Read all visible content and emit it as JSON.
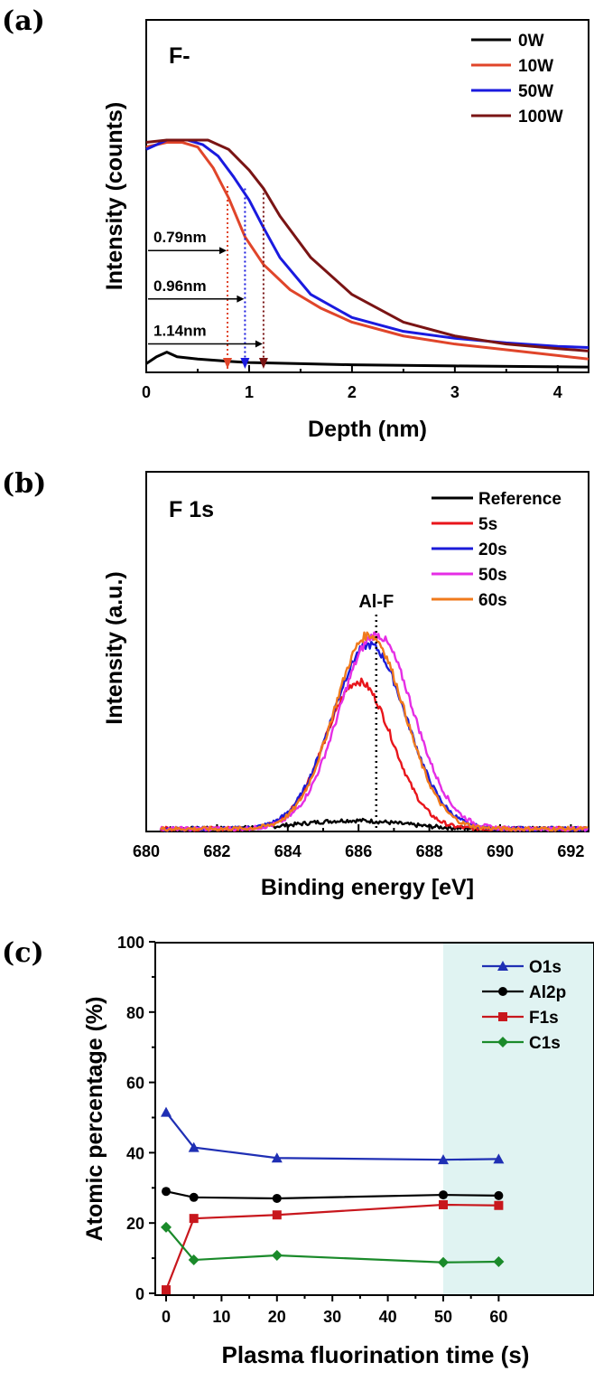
{
  "chart_data": [
    {
      "panel": "(a)",
      "type": "line",
      "title": "F-",
      "xlabel": "Depth (nm)",
      "ylabel": "Intensity (counts)",
      "xlim": [
        0,
        4.3
      ],
      "ylim": [
        0,
        1
      ],
      "x_ticks": [
        "0",
        "1",
        "2",
        "3",
        "4"
      ],
      "legend_position": "top-right",
      "series": [
        {
          "name": "0W",
          "color": "#000000",
          "x": [
            0,
            0.1,
            0.2,
            0.3,
            0.5,
            0.8,
            1.0,
            1.5,
            2.0,
            3.0,
            4.3
          ],
          "y": [
            0.03,
            0.06,
            0.08,
            0.06,
            0.05,
            0.04,
            0.035,
            0.03,
            0.025,
            0.02,
            0.015
          ]
        },
        {
          "name": "10W",
          "color": "#e0452a",
          "x": [
            0,
            0.2,
            0.35,
            0.5,
            0.65,
            0.8,
            0.96,
            1.14,
            1.4,
            1.7,
            2.0,
            2.5,
            3.0,
            3.5,
            4.0,
            4.3
          ],
          "y": [
            0.97,
            0.99,
            0.99,
            0.97,
            0.88,
            0.75,
            0.58,
            0.46,
            0.35,
            0.27,
            0.21,
            0.15,
            0.115,
            0.09,
            0.065,
            0.05
          ]
        },
        {
          "name": "50W",
          "color": "#1a1adf",
          "x": [
            0,
            0.2,
            0.4,
            0.55,
            0.7,
            0.85,
            1.0,
            1.14,
            1.3,
            1.6,
            2.0,
            2.5,
            3.0,
            3.5,
            4.0,
            4.3
          ],
          "y": [
            0.96,
            1.0,
            1.0,
            0.98,
            0.93,
            0.84,
            0.74,
            0.62,
            0.49,
            0.33,
            0.23,
            0.17,
            0.14,
            0.12,
            0.105,
            0.1
          ]
        },
        {
          "name": "100W",
          "color": "#7a1414",
          "x": [
            0,
            0.2,
            0.4,
            0.6,
            0.8,
            1.0,
            1.14,
            1.3,
            1.6,
            2.0,
            2.5,
            3.0,
            3.5,
            4.0,
            4.3
          ],
          "y": [
            0.99,
            1.0,
            1.0,
            1.0,
            0.96,
            0.87,
            0.79,
            0.67,
            0.49,
            0.33,
            0.21,
            0.15,
            0.115,
            0.095,
            0.085
          ]
        }
      ],
      "annotations": [
        {
          "text": "0.79nm",
          "x": 0.79,
          "y_top": 0.8,
          "y_arrow": 0.575,
          "color": "#e0452a"
        },
        {
          "text": "0.96nm",
          "x": 0.96,
          "y_top": 0.79,
          "y_arrow": 0.36,
          "color": "#1a1adf"
        },
        {
          "text": "1.14nm",
          "x": 1.14,
          "y_top": 0.79,
          "y_arrow": 0.165,
          "color": "#7a1414"
        }
      ]
    },
    {
      "panel": "(b)",
      "type": "line",
      "title": "F 1s",
      "xlabel": "Binding energy [eV]",
      "ylabel": "Intensity (a.u.)",
      "xlim": [
        680,
        692.5
      ],
      "ylim": [
        0,
        1
      ],
      "x_ticks": [
        "680",
        "682",
        "684",
        "686",
        "688",
        "690",
        "692"
      ],
      "legend_position": "top-right",
      "annotation": {
        "text": "Al-F",
        "x": 686.5
      },
      "series": [
        {
          "name": "Reference",
          "color": "#000000",
          "center": 685.8,
          "sigma": 1.4,
          "amplitude": 0.025
        },
        {
          "name": "5s",
          "color": "#e8151b",
          "center": 686.0,
          "sigma": 0.95,
          "amplitude": 0.44
        },
        {
          "name": "20s",
          "color": "#1b1bd8",
          "center": 686.3,
          "sigma": 1.05,
          "amplitude": 0.55
        },
        {
          "name": "50s",
          "color": "#e52ee5",
          "center": 686.5,
          "sigma": 1.05,
          "amplitude": 0.58
        },
        {
          "name": "60s",
          "color": "#f07a1c",
          "center": 686.3,
          "sigma": 1.0,
          "amplitude": 0.58
        }
      ]
    },
    {
      "panel": "(c)",
      "type": "line",
      "xlabel": "Plasma fluorination time (s)",
      "ylabel": "Atomic percentage (%)",
      "xlim": [
        -3,
        61
      ],
      "ylim": [
        -1,
        100
      ],
      "x_ticks": [
        "0",
        "10",
        "20",
        "30",
        "40",
        "50",
        "60"
      ],
      "y_ticks": [
        "0",
        "20",
        "40",
        "60",
        "80",
        "100"
      ],
      "highlight": {
        "from": 50,
        "to": 61,
        "color": "#e0f3f2"
      },
      "legend_position": "top-right",
      "x": [
        0,
        5,
        20,
        50,
        60
      ],
      "series": [
        {
          "name": "O1s",
          "color": "#1f2fb4",
          "marker": "triangle",
          "values": [
            51.5,
            41.5,
            38.5,
            38,
            38.2
          ]
        },
        {
          "name": "Al2p",
          "color": "#000000",
          "marker": "circle",
          "values": [
            29,
            27.3,
            27,
            28,
            27.8
          ]
        },
        {
          "name": "F1s",
          "color": "#c8171d",
          "marker": "square",
          "values": [
            1,
            21.3,
            22.3,
            25.2,
            25
          ]
        },
        {
          "name": "C1s",
          "color": "#1a8a2a",
          "marker": "diamond",
          "values": [
            18.8,
            9.5,
            10.8,
            8.8,
            9
          ]
        }
      ]
    }
  ]
}
